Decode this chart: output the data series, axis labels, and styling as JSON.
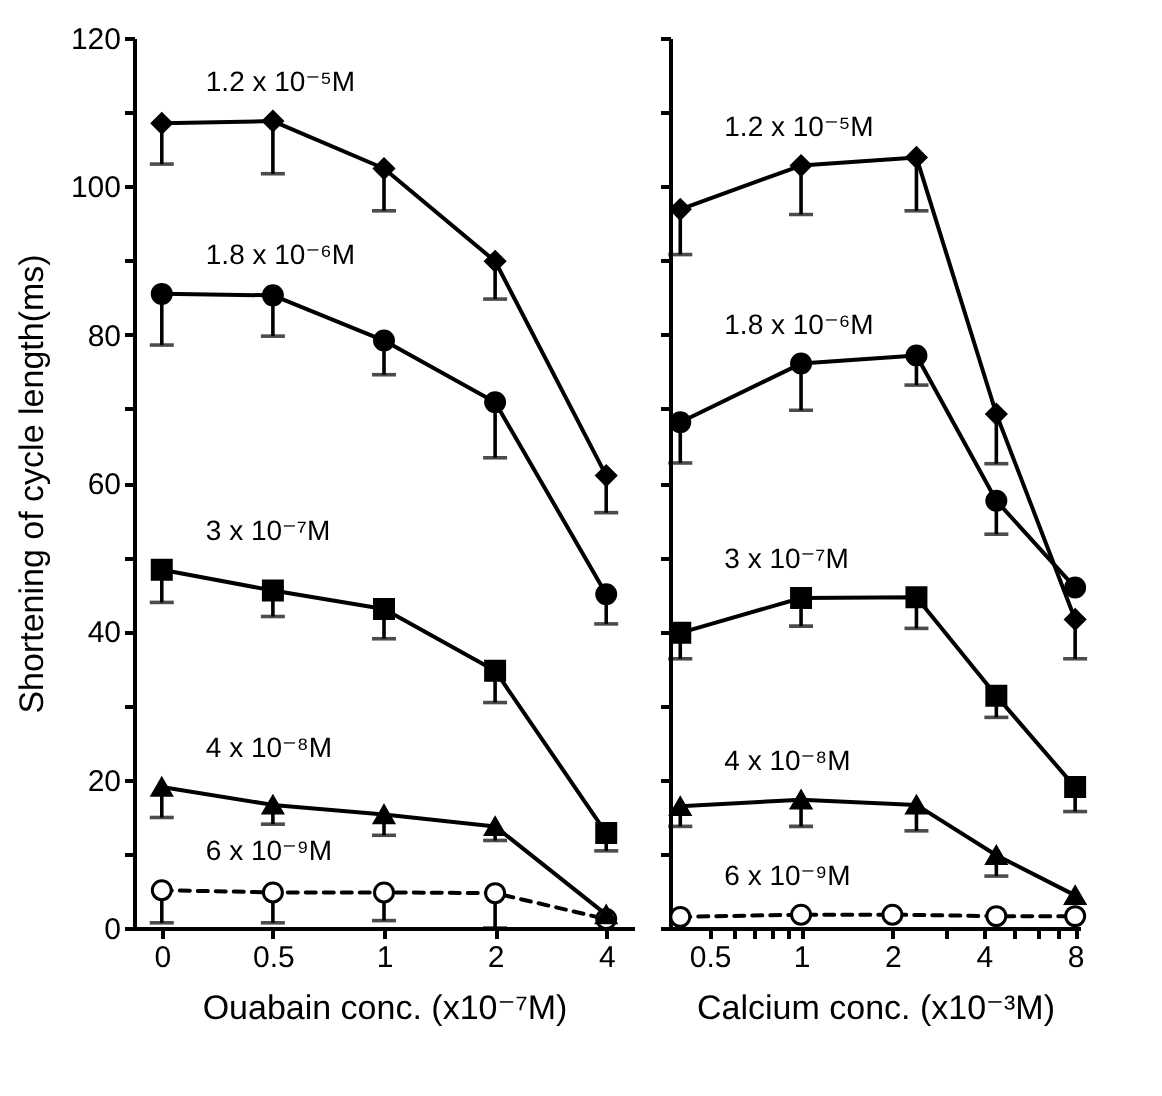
{
  "chart_data": [
    {
      "type": "line",
      "xlabel": "Ouabain conc. (x10⁻⁷M)",
      "ylabel": "Shortening of cycle length(ms)",
      "categories": [
        "0",
        "0.5",
        "1",
        "2",
        "4"
      ],
      "ylim": [
        0,
        120
      ],
      "yticks": [
        0,
        {
          "value": 10,
          "label": null
        },
        20,
        {
          "value": 30,
          "label": null
        },
        40,
        {
          "value": 50,
          "label": null
        },
        60,
        {
          "value": 70,
          "label": null
        },
        80,
        {
          "value": 90,
          "label": null
        },
        100,
        {
          "value": 110,
          "label": null
        },
        120
      ],
      "grid": false,
      "legend": false,
      "series": [
        {
          "name": "1.2 x 10⁻⁵M",
          "color": "#000000",
          "marker": "diamond",
          "line_style": "solid",
          "values": [
            108.5,
            108.8,
            102.4,
            89.9,
            61
          ],
          "errors": [
            [
              103,
              108.5
            ],
            [
              101.7,
              108.8
            ],
            [
              96.7,
              102.4
            ],
            [
              84.8,
              89.9
            ],
            [
              56,
              61
            ]
          ]
        },
        {
          "name": "1.8 x 10⁻⁶M",
          "color": "#000000",
          "marker": "circle",
          "line_style": "solid",
          "values": [
            85.5,
            85.3,
            79.2,
            70.9,
            45
          ],
          "errors": [
            [
              78.6,
              85.5
            ],
            [
              79.8,
              85.3
            ],
            [
              74.6,
              79.2
            ],
            [
              63.4,
              70.9
            ],
            [
              41,
              45
            ]
          ]
        },
        {
          "name": "3 x 10⁻⁷M",
          "color": "#000000",
          "marker": "square",
          "line_style": "solid",
          "values": [
            48.3,
            45.5,
            43,
            34.7,
            12.8
          ],
          "errors": [
            [
              43.9,
              48.3
            ],
            [
              42,
              45.5
            ],
            [
              39,
              43
            ],
            [
              30.4,
              34.7
            ],
            [
              10.4,
              12.8
            ]
          ]
        },
        {
          "name": "4 x 10⁻⁸M",
          "color": "#000000",
          "marker": "triangle",
          "line_style": "solid",
          "values": [
            19,
            16.6,
            15.3,
            13.7,
            1.8
          ],
          "errors": [
            [
              14.9,
              19
            ],
            [
              14,
              16.6
            ],
            [
              12.5,
              15.3
            ],
            [
              11.8,
              13.7
            ],
            null
          ]
        },
        {
          "name": "6 x 10⁻⁹M",
          "color": "#000000",
          "marker": "circle",
          "line_style": "dashed",
          "values": [
            5.1,
            4.8,
            4.8,
            4.7,
            1.2
          ],
          "errors": [
            [
              0.7,
              5.1
            ],
            [
              0.7,
              4.8
            ],
            [
              1,
              4.8
            ],
            [
              0,
              4.7
            ],
            null
          ]
        }
      ]
    },
    {
      "type": "line",
      "xlabel": "Calcium conc. (x10⁻³M)",
      "x": [
        0.4,
        1,
        2.4,
        4.4,
        8
      ],
      "xlim": [
        0.37,
        8.3
      ],
      "xticks": [
        0.5,
        {
          "value": 0.6,
          "label": null
        },
        {
          "value": 0.7,
          "label": null
        },
        {
          "value": 0.8,
          "label": null
        },
        {
          "value": 0.9,
          "label": null
        },
        1,
        2,
        {
          "value": 3,
          "label": null
        },
        4,
        {
          "value": 5,
          "label": null
        },
        {
          "value": 6,
          "label": null
        },
        {
          "value": 7,
          "label": null
        },
        8
      ],
      "log": "x",
      "ylim": [
        0,
        120
      ],
      "yticks": [
        0,
        {
          "value": 10,
          "label": null
        },
        20,
        {
          "value": 30,
          "label": null
        },
        40,
        {
          "value": 50,
          "label": null
        },
        60,
        {
          "value": 70,
          "label": null
        },
        80,
        {
          "value": 90,
          "label": null
        },
        100,
        {
          "value": 110,
          "label": null
        },
        120
      ],
      "tick_labels": "x",
      "grid": false,
      "legend": false,
      "series": [
        {
          "name": "1.2 x 10⁻⁵M",
          "color": "#000000",
          "marker": "diamond",
          "line_style": "solid",
          "values": [
            96.9,
            102.8,
            103.9,
            69.3,
            41.6
          ],
          "errors": [
            [
              90.8,
              96.9
            ],
            [
              96.2,
              102.8
            ],
            [
              96.7,
              103.9
            ],
            [
              62.6,
              69.3
            ],
            [
              36.3,
              41.6
            ]
          ]
        },
        {
          "name": "1.8 x 10⁻⁶M",
          "color": "#000000",
          "marker": "circle",
          "line_style": "solid",
          "values": [
            68.2,
            76.1,
            77.2,
            57.6,
            45.9
          ],
          "errors": [
            [
              62.7,
              68.2
            ],
            [
              69.8,
              76.1
            ],
            [
              73.2,
              77.2
            ],
            [
              53.1,
              57.6
            ],
            null
          ]
        },
        {
          "name": "3 x 10⁻⁷M",
          "color": "#000000",
          "marker": "square",
          "line_style": "solid",
          "values": [
            39.8,
            44.5,
            44.6,
            31.3,
            19
          ],
          "errors": [
            [
              36.3,
              39.8
            ],
            [
              40.7,
              44.5
            ],
            [
              40.4,
              44.6
            ],
            [
              28.4,
              31.3
            ],
            [
              15.7,
              19
            ]
          ]
        },
        {
          "name": "4 x 10⁻⁸M",
          "color": "#000000",
          "marker": "triangle",
          "line_style": "solid",
          "values": [
            16.4,
            17.3,
            16.6,
            9.8,
            4.4
          ],
          "errors": [
            [
              13.7,
              16.4
            ],
            [
              13.7,
              17.3
            ],
            [
              13.1,
              16.6
            ],
            [
              7,
              9.8
            ],
            null
          ]
        },
        {
          "name": "6 x 10⁻⁹M",
          "color": "#000000",
          "marker": "circle",
          "line_style": "dashed",
          "x": [
            0.4,
            1,
            2,
            4.4,
            8
          ],
          "values": [
            1.5,
            1.8,
            1.8,
            1.6,
            1.6
          ]
        }
      ]
    }
  ]
}
